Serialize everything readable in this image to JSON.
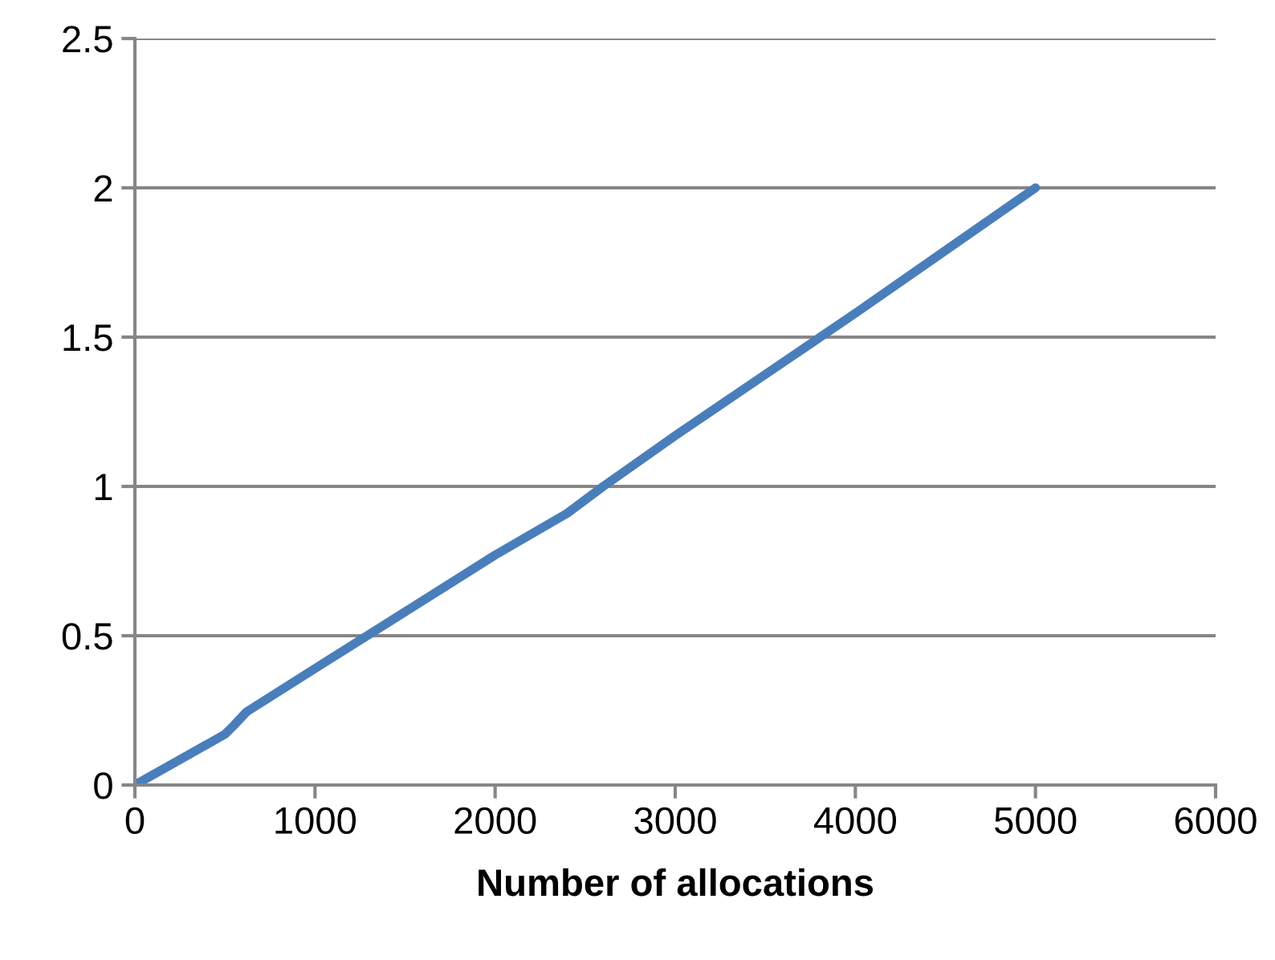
{
  "chart_data": {
    "type": "line",
    "xlabel": "Number of allocations",
    "x": [
      0,
      250,
      500,
      550,
      620,
      1000,
      1500,
      2000,
      2400,
      2600,
      3000,
      3500,
      4000,
      4500,
      5000
    ],
    "series": [
      {
        "color": "#4a7ebb",
        "values": [
          0,
          0.085,
          0.17,
          0.2,
          0.245,
          0.39,
          0.58,
          0.77,
          0.91,
          1.0,
          1.17,
          1.375,
          1.58,
          1.79,
          2.0
        ]
      }
    ],
    "xlim": [
      0,
      6000
    ],
    "xticks": [
      0,
      1000,
      2000,
      3000,
      4000,
      5000,
      6000
    ],
    "ylim": [
      0,
      2.5
    ],
    "yticks": [
      0,
      0.5,
      1,
      1.5,
      2,
      2.5
    ],
    "grid": "y",
    "legend": false,
    "marker": "none",
    "line_style": "solid"
  }
}
